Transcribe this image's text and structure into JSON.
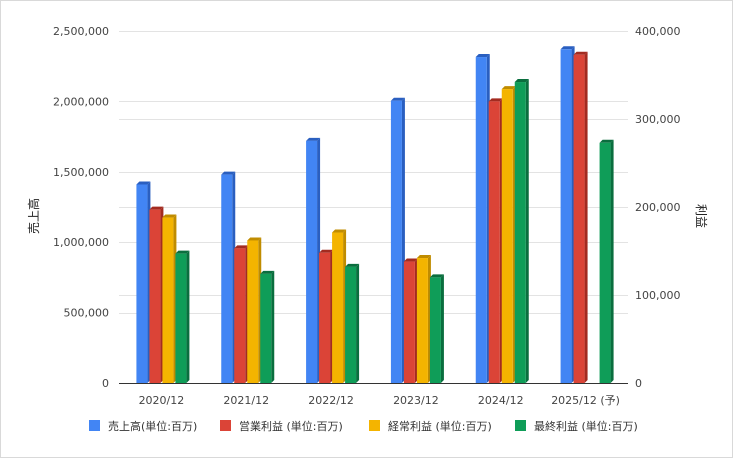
{
  "chart_data": {
    "type": "bar",
    "categories": [
      "2020/12",
      "2021/12",
      "2022/12",
      "2023/12",
      "2024/12",
      "2025/12 (予)"
    ],
    "ylabel_left": "売上高",
    "ylabel_right": "利益",
    "ylim_left": [
      0,
      2500000
    ],
    "ylim_right": [
      0,
      400000
    ],
    "left_ticks": [
      "0",
      "500,000",
      "1,000,000",
      "1,500,000",
      "2,000,000",
      "2,500,000"
    ],
    "right_ticks": [
      "0",
      "100,000",
      "200,000",
      "300,000",
      "400,000"
    ],
    "grid": true,
    "legend_position": "bottom",
    "series": [
      {
        "name": "売上高(単位:百万)",
        "axis": "left",
        "color": "#4285f4",
        "side": "#2a5fc0",
        "values": [
          1410000,
          1480000,
          1720000,
          2005000,
          2315000,
          2370000
        ]
      },
      {
        "name": "営業利益 (単位:百万)",
        "axis": "right",
        "color": "#db4437",
        "side": "#a32b20",
        "values": [
          197000,
          153000,
          148000,
          138000,
          320000,
          373000
        ]
      },
      {
        "name": "経常利益 (単位:百万)",
        "axis": "right",
        "color": "#f4b400",
        "side": "#c08c00",
        "values": [
          188000,
          162000,
          171000,
          142000,
          334000,
          null
        ]
      },
      {
        "name": "最終利益 (単位:百万)",
        "axis": "right",
        "color": "#0f9d58",
        "side": "#0a6e3e",
        "values": [
          147000,
          124000,
          132000,
          120000,
          342000,
          273000
        ]
      }
    ]
  }
}
